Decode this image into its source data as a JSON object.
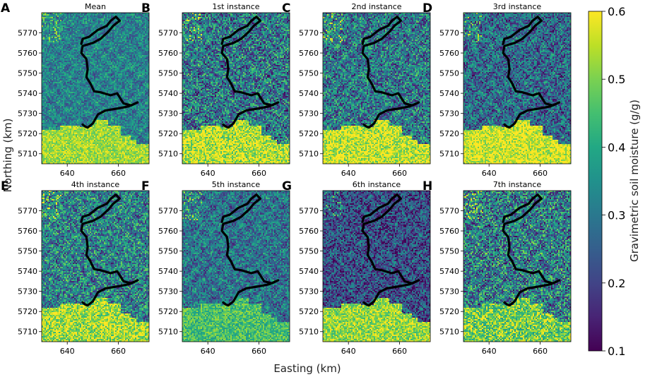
{
  "chart_data": {
    "type": "heatmap",
    "xlabel": "Easting (km)",
    "ylabel": "Northing (km)",
    "x_ticks": [
      640,
      660
    ],
    "y_ticks": [
      5710,
      5720,
      5730,
      5740,
      5750,
      5760,
      5770
    ],
    "xlim": [
      630,
      672
    ],
    "ylim": [
      5705,
      5780
    ],
    "colorbar": {
      "label": "Gravimetric soil moisture (g/g)",
      "min": 0.1,
      "max": 0.6,
      "ticks": [
        0.1,
        0.2,
        0.3,
        0.4,
        0.5,
        0.6
      ],
      "colormap": "viridis"
    },
    "panels": [
      {
        "letter": "A",
        "title": "Mean",
        "base": 0.32,
        "noise": 0.1,
        "south": 0.53
      },
      {
        "letter": "B",
        "title": "1st instance",
        "base": 0.3,
        "noise": 0.17,
        "south": 0.55
      },
      {
        "letter": "C",
        "title": "2nd instance",
        "base": 0.3,
        "noise": 0.16,
        "south": 0.56
      },
      {
        "letter": "D",
        "title": "3rd instance",
        "base": 0.27,
        "noise": 0.14,
        "south": 0.57
      },
      {
        "letter": "E",
        "title": "4th instance",
        "base": 0.32,
        "noise": 0.16,
        "south": 0.53
      },
      {
        "letter": "F",
        "title": "5th instance",
        "base": 0.29,
        "noise": 0.12,
        "south": 0.45
      },
      {
        "letter": "G",
        "title": "6th instance",
        "base": 0.22,
        "noise": 0.13,
        "south": 0.52
      },
      {
        "letter": "H",
        "title": "7th instance",
        "base": 0.31,
        "noise": 0.18,
        "south": 0.49
      }
    ],
    "river_path": [
      [
        646,
        5724.5
      ],
      [
        647,
        5723.5
      ],
      [
        648,
        5723
      ],
      [
        650,
        5725
      ],
      [
        652,
        5729.5
      ],
      [
        655,
        5731.5
      ],
      [
        660,
        5732.5
      ],
      [
        664,
        5733.5
      ],
      [
        667.5,
        5735.5
      ],
      [
        665,
        5734
      ],
      [
        662,
        5735
      ],
      [
        659.5,
        5740
      ],
      [
        657,
        5739
      ],
      [
        653,
        5740.5
      ],
      [
        650.5,
        5741
      ],
      [
        649,
        5745
      ],
      [
        647.5,
        5748
      ],
      [
        648,
        5752
      ],
      [
        647.5,
        5757
      ],
      [
        645.5,
        5760
      ],
      [
        646,
        5763.5
      ],
      [
        650,
        5765
      ],
      [
        653,
        5767
      ],
      [
        656,
        5770.5
      ],
      [
        658,
        5773.5
      ],
      [
        660.5,
        5776
      ],
      [
        659,
        5778
      ],
      [
        657,
        5776
      ],
      [
        655.5,
        5773.5
      ],
      [
        652,
        5771.5
      ],
      [
        648.5,
        5768
      ],
      [
        646,
        5767
      ],
      [
        645.5,
        5764.5
      ]
    ]
  }
}
